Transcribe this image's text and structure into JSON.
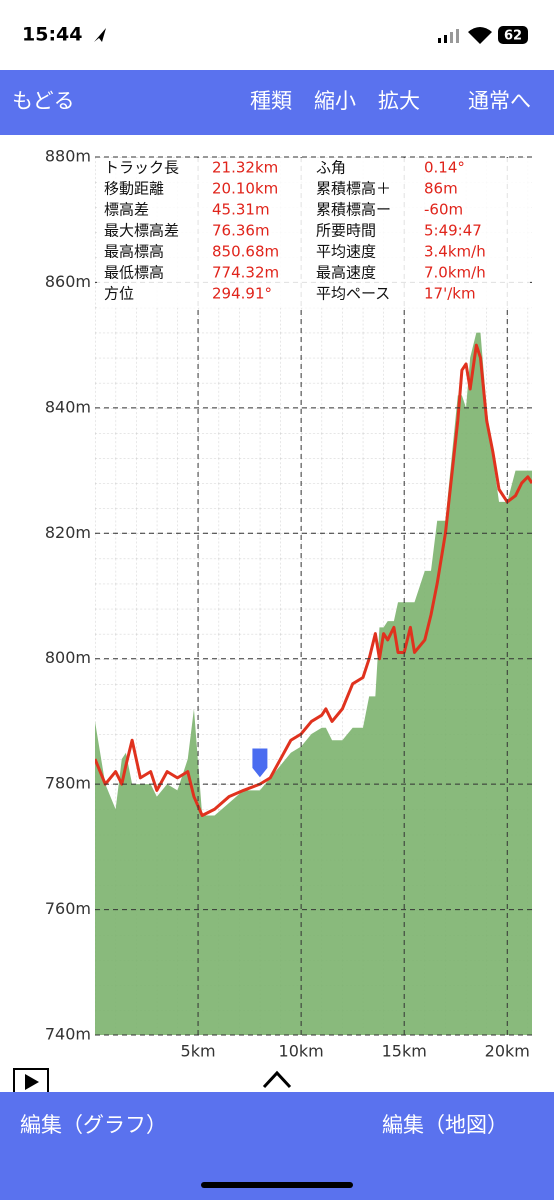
{
  "status": {
    "time": "15:44",
    "battery": "62"
  },
  "nav": {
    "back": "もどる",
    "type": "種類",
    "zoom_out": "縮小",
    "zoom_in": "拡大",
    "normal": "通常へ"
  },
  "stats": [
    [
      "トラック長",
      "21.32km",
      "ふ角",
      "0.14°"
    ],
    [
      "移動距離",
      "20.10km",
      "累積標高＋",
      "86m"
    ],
    [
      "標高差",
      "45.31m",
      "累積標高ー",
      "-60m"
    ],
    [
      "最大標高差",
      "76.36m",
      "所要時間",
      "5:49:47"
    ],
    [
      "最高標高",
      "850.68m",
      "平均速度",
      "3.4km/h"
    ],
    [
      "最低標高",
      "774.32m",
      "最高速度",
      "7.0km/h"
    ],
    [
      "方位",
      "294.91°",
      "平均ペース",
      "17'/km"
    ]
  ],
  "chart_data": {
    "type": "line",
    "x": [
      0,
      0.5,
      1.0,
      1.3,
      1.5,
      1.8,
      2.2,
      2.7,
      3.0,
      3.5,
      4.0,
      4.5,
      4.8,
      5.2,
      5.8,
      6.5,
      7.2,
      8.0,
      8.5,
      9.0,
      9.5,
      10.0,
      10.5,
      11.0,
      11.2,
      11.5,
      12.0,
      12.5,
      13.0,
      13.3,
      13.6,
      13.8,
      14.0,
      14.2,
      14.5,
      14.7,
      15.0,
      15.3,
      15.5,
      16.0,
      16.3,
      16.6,
      17.0,
      17.3,
      17.6,
      17.8,
      18.0,
      18.2,
      18.5,
      18.7,
      19.0,
      19.3,
      19.6,
      20.0,
      20.4,
      20.7,
      21.0,
      21.2
    ],
    "series": [
      {
        "color": "#e0321e",
        "values": [
          784,
          780,
          782,
          780,
          783,
          787,
          781,
          782,
          779,
          782,
          781,
          782,
          778,
          775,
          776,
          778,
          779,
          780,
          781,
          784,
          787,
          788,
          790,
          791,
          792,
          790,
          792,
          796,
          797,
          800,
          804,
          800,
          804,
          803,
          805,
          801,
          801,
          805,
          801,
          803,
          807,
          812,
          820,
          829,
          838,
          846,
          847,
          843,
          850,
          848,
          838,
          833,
          827,
          825,
          826,
          828,
          829,
          828
        ]
      },
      {
        "color": "#7cb36e",
        "values": [
          790,
          780,
          776,
          784,
          785,
          780,
          780,
          780,
          778,
          780,
          779,
          784,
          792,
          775,
          775,
          777,
          779,
          779,
          781,
          783,
          785,
          786,
          788,
          789,
          789,
          787,
          787,
          789,
          789,
          794,
          794,
          805,
          805,
          806,
          806,
          809,
          809,
          809,
          809,
          814,
          814,
          822,
          822,
          832,
          842,
          842,
          840,
          848,
          852,
          852,
          840,
          832,
          825,
          825,
          830,
          830,
          830,
          830
        ]
      }
    ],
    "xlim": [
      0,
      21.2
    ],
    "ylim": [
      740,
      880
    ],
    "xticks": [
      {
        "value": 5,
        "label": "5km"
      },
      {
        "value": 10,
        "label": "10km"
      },
      {
        "value": 15,
        "label": "15km"
      },
      {
        "value": 20,
        "label": "20km"
      }
    ],
    "yticks": [
      {
        "value": 740,
        "label": "740m"
      },
      {
        "value": 760,
        "label": "760m"
      },
      {
        "value": 780,
        "label": "780m"
      },
      {
        "value": 800,
        "label": "800m"
      },
      {
        "value": 820,
        "label": "820m"
      },
      {
        "value": 840,
        "label": "840m"
      },
      {
        "value": 860,
        "label": "860m"
      },
      {
        "value": 880,
        "label": "880m"
      }
    ],
    "grid": true,
    "marker_x": 8.0
  },
  "bottom": {
    "edit_graph": "編集（グラフ）",
    "edit_map": "編集（地図）"
  }
}
